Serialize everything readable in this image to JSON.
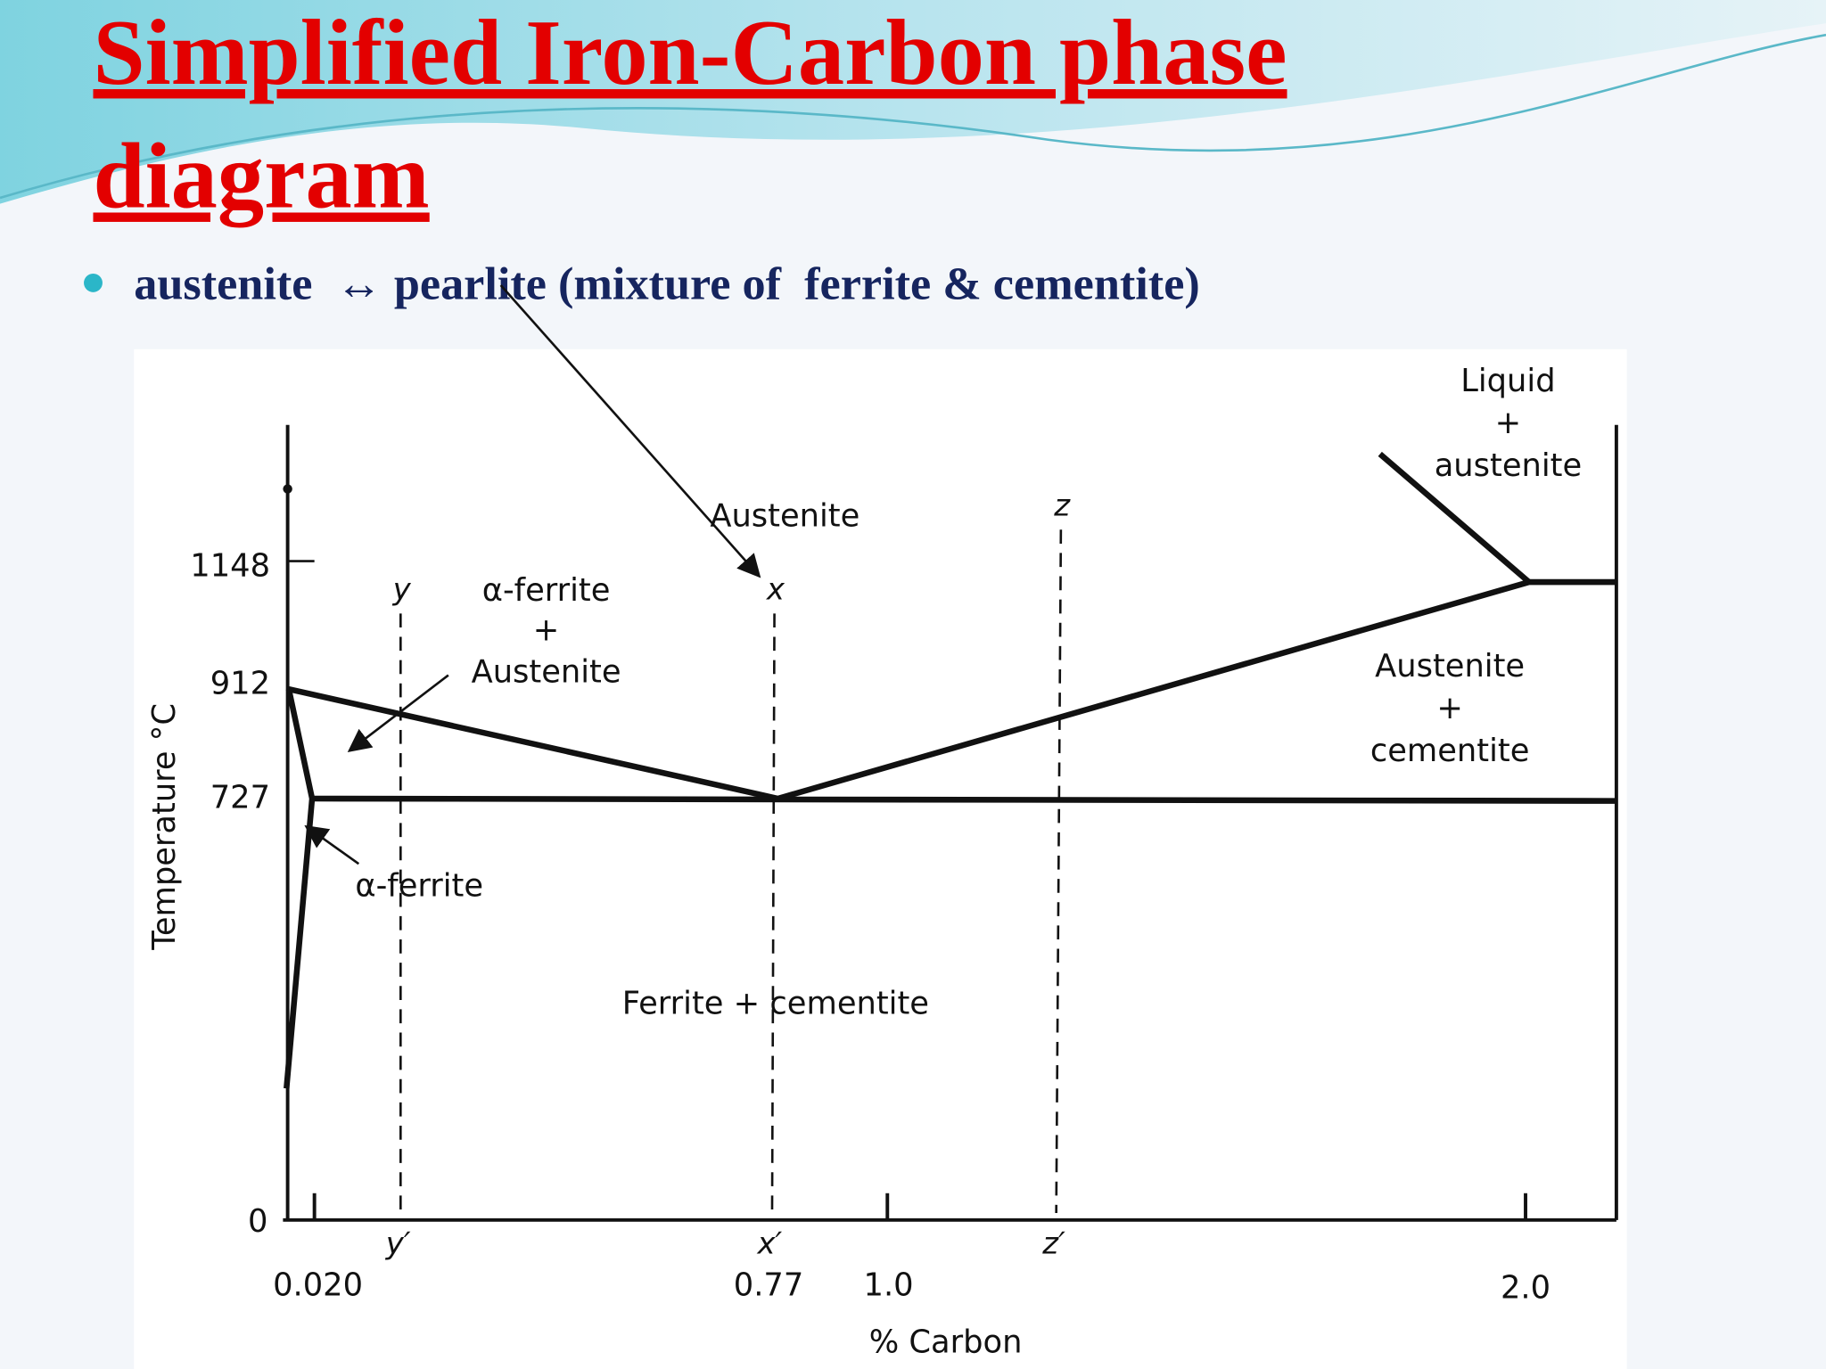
{
  "title": [
    "Simplified Iron-Carbon phase",
    "diagram"
  ],
  "bullet": "austenite  ↔ pearlite (mixture of  ferrite & cementite)",
  "diagram": {
    "y_axis_label": "Temperature °C",
    "x_axis_label": "% Carbon",
    "y_ticks": [
      "1148",
      "912",
      "727",
      "0"
    ],
    "x_ticks": [
      "0.020",
      "0.77",
      "1.0",
      "2.0"
    ],
    "markers": [
      "y",
      "x",
      "z",
      "y′",
      "x′",
      "z′"
    ],
    "regions": {
      "liquid_austenite": [
        "Liquid",
        "+",
        "austenite"
      ],
      "austenite": "Austenite",
      "ferrite_austenite": [
        "α-ferrite",
        "+",
        "Austenite"
      ],
      "austenite_cementite": [
        "Austenite",
        "+",
        "cementite"
      ],
      "alpha_ferrite": "α-ferrite",
      "ferrite_cementite": "Ferrite + cementite"
    }
  }
}
